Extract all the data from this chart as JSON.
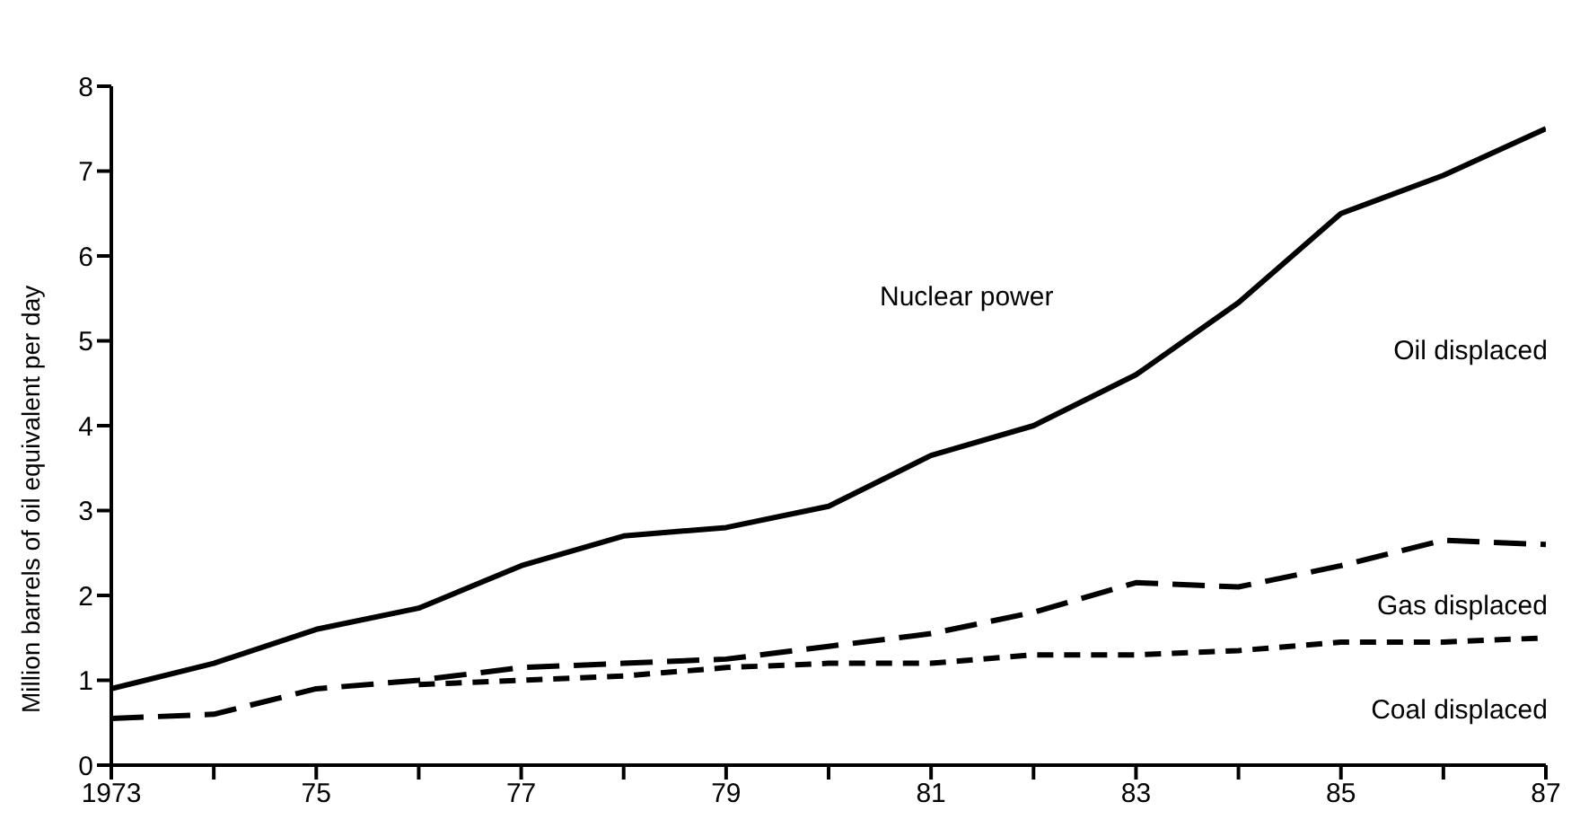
{
  "chart_data": {
    "type": "line",
    "ylabel": "Million barrels of oil equivalent per day",
    "xlim": [
      1973,
      1987
    ],
    "xticks": [
      {
        "value": 1973,
        "label": "1973"
      },
      {
        "value": 1974,
        "label": null
      },
      {
        "value": 1975,
        "label": "75"
      },
      {
        "value": 1976,
        "label": null
      },
      {
        "value": 1977,
        "label": "77"
      },
      {
        "value": 1978,
        "label": null
      },
      {
        "value": 1979,
        "label": "79"
      },
      {
        "value": 1980,
        "label": null
      },
      {
        "value": 1981,
        "label": "81"
      },
      {
        "value": 1982,
        "label": null
      },
      {
        "value": 1983,
        "label": "83"
      },
      {
        "value": 1984,
        "label": null
      },
      {
        "value": 1985,
        "label": "85"
      },
      {
        "value": 1986,
        "label": null
      },
      {
        "value": 1987,
        "label": "87"
      }
    ],
    "ylim": [
      0,
      8
    ],
    "yticks": [
      0,
      1,
      2,
      3,
      4,
      5,
      6,
      7,
      8
    ],
    "marker": "none",
    "annotations": [
      "Nuclear power",
      "Oil displaced",
      "Gas displaced",
      "Coal displaced"
    ],
    "series": [
      {
        "color": "#000000",
        "line_style": "solid",
        "x": [
          1973,
          1974,
          1975,
          1976,
          1977,
          1978,
          1979,
          1980,
          1981,
          1982,
          1983,
          1984,
          1985,
          1986,
          1987
        ],
        "values": [
          0.9,
          1.2,
          1.6,
          1.85,
          2.35,
          2.7,
          2.8,
          3.05,
          3.65,
          4.0,
          4.6,
          5.45,
          6.5,
          6.95,
          7.5
        ]
      },
      {
        "color": "#000000",
        "line_style": "dashed",
        "x": [
          1973,
          1974,
          1975,
          1976,
          1977,
          1978,
          1979,
          1980,
          1981,
          1982,
          1983,
          1984,
          1985,
          1986,
          1987
        ],
        "values": [
          0.55,
          0.6,
          0.9,
          1.0,
          1.15,
          1.2,
          1.25,
          1.4,
          1.55,
          1.8,
          2.15,
          2.1,
          2.35,
          2.65,
          2.6
        ]
      },
      {
        "color": "#000000",
        "line_style": "dotted",
        "x": [
          1976,
          1977,
          1978,
          1979,
          1980,
          1981,
          1982,
          1983,
          1984,
          1985,
          1986,
          1987
        ],
        "values": [
          0.95,
          1.0,
          1.05,
          1.15,
          1.2,
          1.2,
          1.3,
          1.3,
          1.35,
          1.45,
          1.45,
          1.5
        ]
      }
    ]
  }
}
